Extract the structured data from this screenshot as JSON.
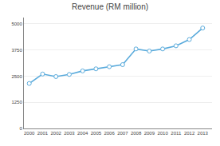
{
  "chart_data": {
    "type": "line",
    "title": "Revenue (RM million)",
    "x": [
      2000,
      2001,
      2002,
      2003,
      2004,
      2005,
      2006,
      2007,
      2008,
      2009,
      2010,
      2011,
      2012,
      2013
    ],
    "values": [
      2150,
      2600,
      2480,
      2580,
      2750,
      2850,
      2950,
      3050,
      3800,
      3700,
      3800,
      3950,
      4250,
      4800
    ],
    "color": "#5aabdc",
    "marker": "o",
    "xlim": [
      1999.6,
      2013.7
    ],
    "xticks": [
      2000,
      2001,
      2002,
      2003,
      2004,
      2005,
      2006,
      2007,
      2008,
      2009,
      2010,
      2011,
      2012,
      2013
    ],
    "ylim": [
      0,
      5300
    ],
    "yticks": [
      0,
      1250,
      2500,
      3750,
      5000
    ],
    "grid": true
  }
}
